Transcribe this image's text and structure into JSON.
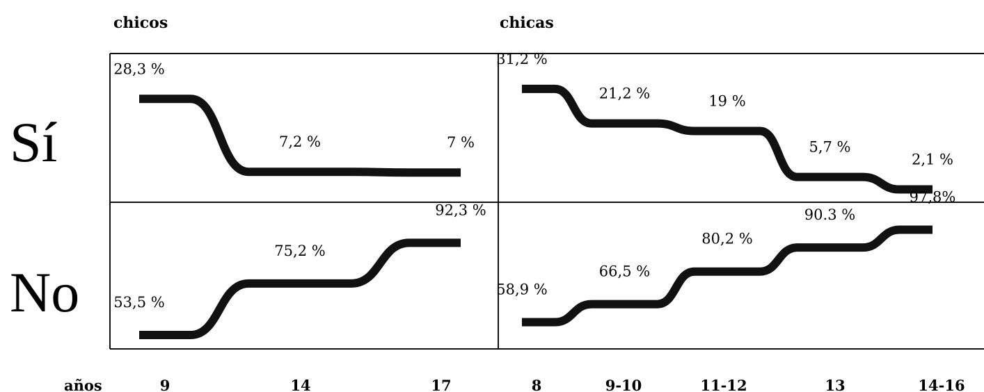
{
  "chart_data": {
    "type": "line",
    "row_labels": [
      "Sí",
      "No"
    ],
    "axis_label": "años",
    "panels": [
      {
        "title": "chicos",
        "categories": [
          "9",
          "14",
          "17"
        ],
        "series": [
          {
            "name": "Sí",
            "values": [
              28.3,
              7.2,
              7
            ],
            "labels": [
              "28,3 %",
              "7,2 %",
              "7 %"
            ]
          },
          {
            "name": "No",
            "values": [
              53.5,
              75.2,
              92.3
            ],
            "labels": [
              "53,5 %",
              "75,2 %",
              "92,3 %"
            ]
          }
        ]
      },
      {
        "title": "chicas",
        "categories": [
          "8",
          "9-10",
          "11-12",
          "13",
          "14-16"
        ],
        "series": [
          {
            "name": "Sí",
            "values": [
              31.2,
              21.2,
              19,
              5.7,
              2.1
            ],
            "labels": [
              "31,2 %",
              "21,2 %",
              "19 %",
              "5,7 %",
              "2,1 %"
            ]
          },
          {
            "name": "No",
            "values": [
              58.9,
              66.5,
              80.2,
              90.3,
              97.8
            ],
            "labels": [
              "58,9 %",
              "66,5 %",
              "80,2 %",
              "90.3 %",
              "97,8%"
            ]
          }
        ]
      }
    ],
    "colors": {
      "line": "#111111",
      "frame": "#111111"
    }
  }
}
